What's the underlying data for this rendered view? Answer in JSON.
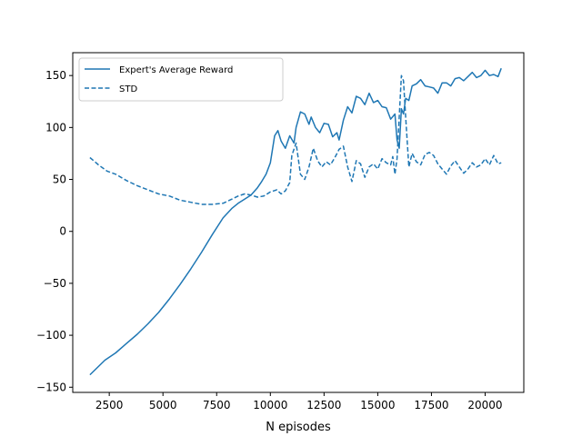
{
  "chart_data": {
    "type": "line",
    "title": "",
    "xlabel": "N episodes",
    "ylabel": "",
    "xlim": [
      800,
      21800
    ],
    "ylim": [
      -155,
      172
    ],
    "xticks": [
      2500,
      5000,
      7500,
      10000,
      12500,
      15000,
      17500,
      20000
    ],
    "xtick_labels": [
      "2500",
      "5000",
      "7500",
      "10000",
      "12500",
      "15000",
      "17500",
      "20000"
    ],
    "yticks": [
      -150,
      -100,
      -50,
      0,
      50,
      100,
      150
    ],
    "ytick_labels": [
      "−150",
      "−100",
      "−50",
      "0",
      "50",
      "100",
      "150"
    ],
    "grid": false,
    "legend_position": "top-left",
    "colors": {
      "line": "#1f77b4",
      "axis": "#000000"
    },
    "series": [
      {
        "name": "Expert's Average Reward",
        "style": "solid",
        "x": [
          1600,
          2300,
          2800,
          3300,
          3800,
          4300,
          4800,
          5300,
          5800,
          6300,
          6800,
          7300,
          7800,
          8200,
          8500,
          8800,
          9100,
          9400,
          9600,
          9800,
          10000,
          10200,
          10350,
          10500,
          10700,
          10900,
          11100,
          11200,
          11400,
          11600,
          11800,
          11900,
          12100,
          12300,
          12500,
          12700,
          12900,
          13100,
          13200,
          13400,
          13600,
          13800,
          14000,
          14200,
          14400,
          14600,
          14800,
          15000,
          15200,
          15400,
          15600,
          15800,
          15900,
          16000,
          16100,
          16200,
          16300,
          16450,
          16600,
          16800,
          17000,
          17200,
          17400,
          17600,
          17800,
          18000,
          18200,
          18400,
          18600,
          18800,
          19000,
          19200,
          19400,
          19600,
          19800,
          20000,
          20200,
          20400,
          20600,
          20750
        ],
        "y": [
          -138,
          -124,
          -117,
          -108,
          -99,
          -89,
          -78,
          -65,
          -51,
          -36,
          -20,
          -3,
          13,
          22,
          27,
          31,
          35,
          42,
          48,
          55,
          66,
          92,
          97,
          87,
          80,
          92,
          85,
          100,
          115,
          113,
          103,
          110,
          100,
          95,
          104,
          103,
          91,
          95,
          88,
          107,
          120,
          114,
          130,
          128,
          122,
          133,
          124,
          126,
          120,
          119,
          108,
          113,
          88,
          80,
          118,
          113,
          128,
          126,
          140,
          142,
          146,
          140,
          139,
          138,
          133,
          143,
          143,
          140,
          147,
          148,
          145,
          149,
          153,
          148,
          150,
          155,
          150,
          151,
          149,
          157
        ]
      },
      {
        "name": "STD",
        "style": "dashed",
        "x": [
          1600,
          2000,
          2400,
          2800,
          3300,
          3800,
          4300,
          4800,
          5300,
          5800,
          6300,
          6800,
          7300,
          7800,
          8200,
          8500,
          8800,
          9100,
          9400,
          9700,
          10000,
          10300,
          10500,
          10700,
          10900,
          11000,
          11200,
          11400,
          11600,
          11800,
          12000,
          12200,
          12400,
          12600,
          12800,
          13000,
          13200,
          13400,
          13600,
          13800,
          14000,
          14200,
          14400,
          14600,
          14800,
          15000,
          15200,
          15400,
          15600,
          15700,
          15800,
          15900,
          16000,
          16100,
          16200,
          16300,
          16450,
          16600,
          16800,
          17000,
          17200,
          17400,
          17600,
          17800,
          18000,
          18200,
          18400,
          18600,
          18800,
          19000,
          19200,
          19400,
          19600,
          19800,
          20000,
          20200,
          20400,
          20600,
          20750
        ],
        "y": [
          71,
          64,
          58,
          55,
          49,
          44,
          40,
          36,
          34,
          30,
          28,
          26,
          26,
          27,
          31,
          34,
          36,
          35,
          33,
          34,
          38,
          40,
          36,
          39,
          47,
          73,
          85,
          55,
          50,
          62,
          80,
          68,
          62,
          67,
          64,
          71,
          79,
          82,
          62,
          48,
          68,
          65,
          52,
          62,
          65,
          60,
          70,
          66,
          64,
          72,
          55,
          70,
          110,
          150,
          145,
          110,
          62,
          75,
          67,
          64,
          74,
          76,
          73,
          65,
          60,
          55,
          63,
          68,
          62,
          56,
          60,
          66,
          62,
          64,
          70,
          64,
          73,
          65,
          66
        ]
      }
    ]
  }
}
